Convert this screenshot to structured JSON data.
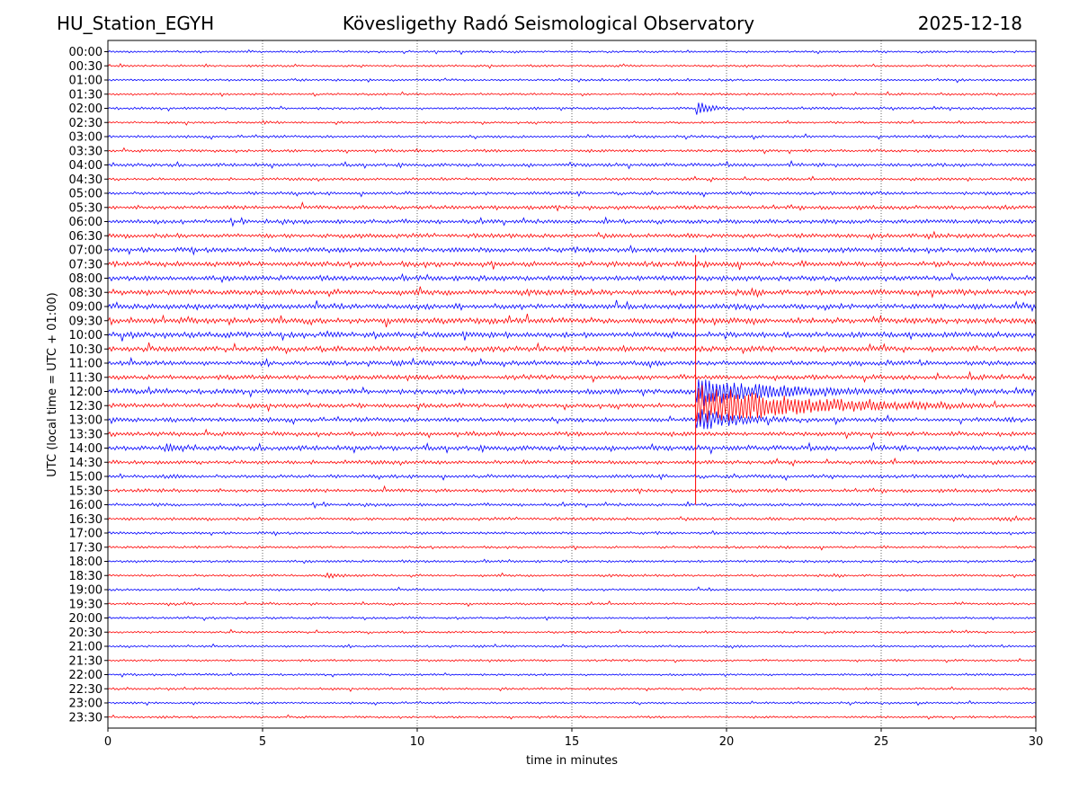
{
  "header": {
    "station": "HU_Station_EGYH",
    "title": "Kövesligethy Radó Seismological Observatory",
    "date": "2025-12-18"
  },
  "chart_data": {
    "type": "line",
    "title": "Kövesligethy Radó Seismological Observatory",
    "xlabel": "time in minutes",
    "ylabel": "UTC (local time = UTC + 01:00)",
    "xlim": [
      0,
      30
    ],
    "x_ticks": [
      0,
      5,
      10,
      15,
      20,
      25,
      30
    ],
    "grid": "vertical dotted lines at each x tick",
    "colors": {
      "even": "#0000ff",
      "odd": "#ff0000"
    },
    "rows": [
      "00:00",
      "00:30",
      "01:00",
      "01:30",
      "02:00",
      "02:30",
      "03:00",
      "03:30",
      "04:00",
      "04:30",
      "05:00",
      "05:30",
      "06:00",
      "06:30",
      "07:00",
      "07:30",
      "08:00",
      "08:30",
      "09:00",
      "09:30",
      "10:00",
      "10:30",
      "11:00",
      "11:30",
      "12:00",
      "12:30",
      "13:00",
      "13:30",
      "14:00",
      "14:30",
      "15:00",
      "15:30",
      "16:00",
      "16:30",
      "17:00",
      "17:30",
      "18:00",
      "18:30",
      "19:00",
      "19:30",
      "20:00",
      "20:30",
      "21:00",
      "21:30",
      "22:00",
      "22:30",
      "23:00",
      "23:30"
    ],
    "noise_level": [
      1,
      1,
      1,
      1,
      1.2,
      1,
      1.2,
      1.3,
      1.5,
      1.3,
      1.5,
      1.8,
      2,
      2,
      2.2,
      2.4,
      2.4,
      2.6,
      2.4,
      2.6,
      2.6,
      2.4,
      2.2,
      2.2,
      2.4,
      2,
      2,
      2,
      2.2,
      1.8,
      1.6,
      1.6,
      1.4,
      1.4,
      1.2,
      1.1,
      1.2,
      1.1,
      1,
      1,
      1,
      1,
      1,
      1,
      1,
      1,
      1,
      1
    ],
    "events": [
      {
        "row": 4,
        "minute": 19.0,
        "amplitude": 8,
        "duration": 1.2
      },
      {
        "row": 5,
        "minute": 5.0,
        "amplitude": 3,
        "duration": 0.3
      },
      {
        "row": 24,
        "minute": 19.0,
        "amplitude": 18,
        "duration": 6
      },
      {
        "row": 25,
        "minute": 19.0,
        "amplitude": 24,
        "duration": 9
      },
      {
        "row": 26,
        "minute": 19.0,
        "amplitude": 14,
        "duration": 3
      },
      {
        "row": 28,
        "minute": 1.8,
        "amplitude": 5,
        "duration": 1
      },
      {
        "row": 33,
        "minute": 28.8,
        "amplitude": 4,
        "duration": 0.4
      },
      {
        "row": 37,
        "minute": 7.0,
        "amplitude": 3,
        "duration": 1.2
      }
    ],
    "big_spike": {
      "minute": 19.0,
      "from_row": 15,
      "to_row": 32
    }
  }
}
